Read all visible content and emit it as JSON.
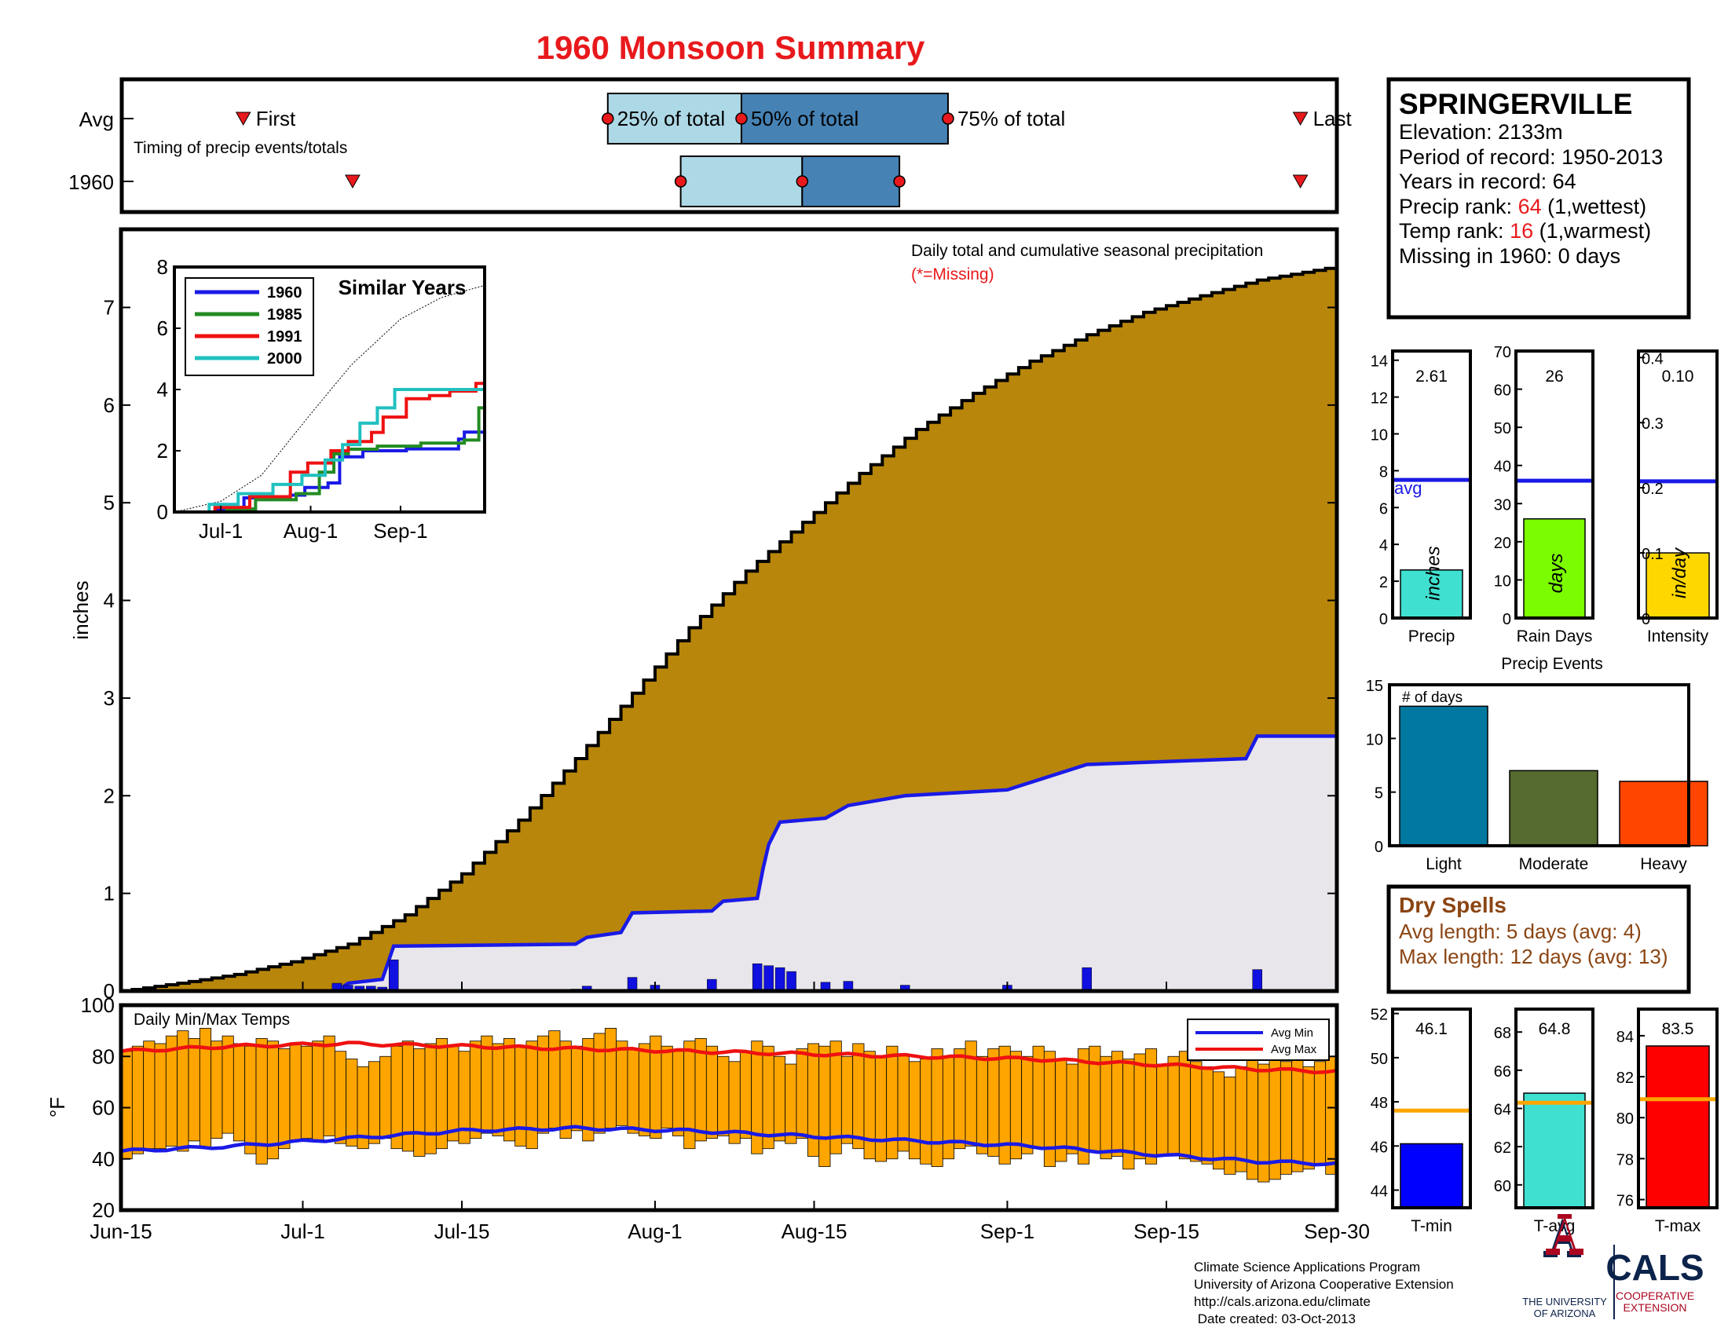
{
  "title": "1960 Monsoon Summary",
  "colors": {
    "title": "#e8191c",
    "seasonal_fill": "#b8860b",
    "year_fill": "#e8e6ea",
    "year_line": "#1a1ae6",
    "q1_box": "#add8e6",
    "q2_box": "#4682b4",
    "marker_red": "#e8191c",
    "temp_bar": "#ffa500",
    "avg_max_line": "#ee1111",
    "avg_min_line": "#1a1ae6",
    "precip_bar": "#40e0d0",
    "raindays_bar": "#7cfc00",
    "intensity_bar": "#ffd700",
    "light_bar": "#00789f",
    "moderate_bar": "#556b2f",
    "heavy_bar": "#ff4500",
    "dry_spells_text": "#8b4513",
    "tmin_bar": "#0000ff",
    "tavg_bar": "#40e0d0",
    "tmax_bar": "#ff0000",
    "avg_line_orange": "#ffa500",
    "ua_red": "#ab0520",
    "ua_blue": "#0c234b"
  },
  "timing": {
    "row_avg_label": "Avg",
    "row_year_label": "1960",
    "subtitle": "Timing of precip events/totals",
    "first_label": "First",
    "last_label": "Last",
    "q25_label": "25% of total",
    "q50_label": "50% of total",
    "q75_label": "75% of total",
    "avg": {
      "first": 10,
      "q25": 40,
      "q50": 51,
      "q75": 68,
      "last": 97
    },
    "year": {
      "first": 19,
      "q25": 46,
      "q50": 56,
      "q75": 64,
      "last": 97
    }
  },
  "info_box": {
    "station": "SPRINGERVILLE",
    "elevation": "Elevation: 2133m",
    "period": "Period of record: 1950-2013",
    "years": "Years in record: 64",
    "precip_rank_prefix": "Precip rank: ",
    "precip_rank_value": "64",
    "precip_rank_suffix": " (1,wettest)",
    "temp_rank_prefix": "Temp rank: ",
    "temp_rank_value": "16",
    "temp_rank_suffix": " (1,warmest)",
    "missing": "Missing in 1960: 0 days"
  },
  "chart_data": [
    {
      "id": "precip_main",
      "type": "area",
      "ylabel": "inches",
      "ylim": [
        0,
        7.8
      ],
      "yticks": [
        0,
        1,
        2,
        3,
        4,
        5,
        6,
        7
      ],
      "x_tick_labels": [
        "Jun-15",
        "Jul-1",
        "Jul-15",
        "Aug-1",
        "Aug-15",
        "Sep-1",
        "Sep-15",
        "Sep-30"
      ],
      "x_tick_days": [
        0,
        16,
        30,
        47,
        61,
        78,
        92,
        107
      ],
      "annotation": "Daily total and cumulative seasonal precipitation",
      "annotation_missing": "(*=Missing)",
      "series": [
        {
          "name": "Average cumulative",
          "x": [
            0,
            5,
            10,
            15,
            20,
            25,
            30,
            35,
            40,
            45,
            50,
            55,
            60,
            65,
            70,
            75,
            80,
            85,
            90,
            95,
            100,
            107
          ],
          "values": [
            0,
            0.08,
            0.17,
            0.3,
            0.48,
            0.78,
            1.2,
            1.75,
            2.38,
            3.05,
            3.72,
            4.3,
            4.8,
            5.3,
            5.75,
            6.12,
            6.45,
            6.72,
            6.95,
            7.12,
            7.28,
            7.42
          ]
        },
        {
          "name": "1960 cumulative",
          "x": [
            0,
            19,
            20,
            23,
            24,
            40,
            41,
            44,
            45,
            52,
            53,
            56,
            56.5,
            57,
            58,
            62,
            64,
            69,
            78,
            85,
            99,
            100,
            107
          ],
          "values": [
            0,
            0,
            0.08,
            0.12,
            0.46,
            0.48,
            0.55,
            0.6,
            0.8,
            0.82,
            0.92,
            0.95,
            1.25,
            1.5,
            1.73,
            1.77,
            1.9,
            2.0,
            2.06,
            2.32,
            2.38,
            2.61,
            2.61
          ]
        },
        {
          "name": "1960 daily",
          "x": [
            19,
            20,
            21,
            22,
            23,
            24,
            40,
            41,
            45,
            47,
            52,
            56,
            57,
            58,
            59,
            62,
            64,
            69,
            78,
            85,
            100
          ],
          "values": [
            0.08,
            0.06,
            0.05,
            0.05,
            0.04,
            0.32,
            0.02,
            0.05,
            0.14,
            0.06,
            0.12,
            0.28,
            0.26,
            0.24,
            0.2,
            0.09,
            0.1,
            0.06,
            0.06,
            0.24,
            0.22
          ]
        }
      ]
    },
    {
      "id": "similar_years",
      "type": "line",
      "title": "Similar Years",
      "ylim": [
        0,
        8
      ],
      "yticks": [
        0,
        2,
        4,
        6,
        8
      ],
      "x_tick_labels": [
        "Jul-1",
        "Aug-1",
        "Sep-1"
      ],
      "x_tick_days": [
        16,
        47,
        78
      ],
      "series": [
        {
          "name": "Average",
          "x": [
            0,
            16,
            30,
            47,
            61,
            78,
            92,
            107
          ],
          "values": [
            0,
            0.35,
            1.2,
            3.2,
            4.8,
            6.3,
            7.0,
            7.4
          ]
        },
        {
          "name": "1960",
          "x": [
            0,
            15,
            24,
            40,
            45,
            53,
            57,
            65,
            80,
            98,
            100,
            107
          ],
          "values": [
            0,
            0.08,
            0.46,
            0.55,
            0.8,
            0.95,
            1.8,
            2.0,
            2.06,
            2.38,
            2.61,
            2.61
          ]
        },
        {
          "name": "1985",
          "x": [
            0,
            18,
            28,
            42,
            50,
            55,
            60,
            70,
            85,
            100,
            105,
            107
          ],
          "values": [
            0,
            0.1,
            0.4,
            0.6,
            1.3,
            1.9,
            2.05,
            2.15,
            2.25,
            2.35,
            3.4,
            3.6
          ]
        },
        {
          "name": "1991",
          "x": [
            0,
            14,
            26,
            40,
            46,
            54,
            60,
            68,
            72,
            80,
            88,
            95,
            104,
            107
          ],
          "values": [
            0,
            0.15,
            0.5,
            1.3,
            1.6,
            2.0,
            2.3,
            2.6,
            3.1,
            3.7,
            3.8,
            3.95,
            4.2,
            4.4
          ]
        },
        {
          "name": "2000",
          "x": [
            0,
            12,
            22,
            34,
            44,
            52,
            58,
            64,
            70,
            76,
            107
          ],
          "values": [
            0,
            0.25,
            0.6,
            0.9,
            1.2,
            1.7,
            2.2,
            2.9,
            3.4,
            4.0,
            4.1
          ]
        }
      ]
    },
    {
      "id": "temps",
      "type": "bar",
      "title": "Daily Min/Max Temps",
      "ylabel": "°F",
      "ylim": [
        20,
        100
      ],
      "yticks": [
        20,
        40,
        60,
        80,
        100
      ],
      "x_tick_labels": [
        "Jun-15",
        "Jul-1",
        "Jul-15",
        "Aug-1",
        "Aug-15",
        "Sep-1",
        "Sep-15",
        "Sep-30"
      ],
      "x_tick_days": [
        0,
        16,
        30,
        47,
        61,
        78,
        92,
        107
      ],
      "legend": [
        "Avg Min",
        "Avg Max"
      ],
      "legend_position": "top-right",
      "series": [
        {
          "name": "Avg Min",
          "x": [
            0,
            10,
            20,
            30,
            40,
            50,
            60,
            70,
            80,
            90,
            100,
            107
          ],
          "values": [
            43,
            45,
            48,
            51,
            52,
            51,
            49,
            47,
            45,
            42,
            39,
            38
          ]
        },
        {
          "name": "Avg Max",
          "x": [
            0,
            10,
            20,
            30,
            40,
            50,
            60,
            70,
            80,
            90,
            100,
            107
          ],
          "values": [
            82,
            84,
            85,
            84,
            83,
            82,
            81,
            80,
            79,
            77,
            75,
            74
          ]
        },
        {
          "name": "Daily max",
          "values": [
            82,
            84,
            86,
            85,
            88,
            90,
            87,
            91,
            86,
            88,
            85,
            84,
            87,
            86,
            83,
            85,
            84,
            86,
            88,
            82,
            79,
            76,
            78,
            80,
            84,
            86,
            83,
            85,
            87,
            84,
            82,
            86,
            88,
            85,
            87,
            84,
            86,
            88,
            90,
            86,
            84,
            87,
            89,
            91,
            86,
            83,
            85,
            88,
            84,
            82,
            86,
            87,
            84,
            80,
            78,
            82,
            86,
            84,
            80,
            77,
            83,
            85,
            84,
            86,
            80,
            85,
            82,
            80,
            84,
            81,
            78,
            79,
            83,
            80,
            83,
            86,
            80,
            83,
            84,
            82,
            80,
            84,
            82,
            79,
            77,
            83,
            84,
            80,
            82,
            79,
            81,
            83,
            77,
            80,
            82,
            78,
            76,
            74,
            72,
            76,
            79,
            77,
            80,
            78,
            82,
            76,
            78,
            80
          ]
        },
        {
          "name": "Daily min",
          "values": [
            40,
            42,
            44,
            44,
            45,
            43,
            47,
            44,
            48,
            50,
            47,
            42,
            38,
            40,
            44,
            47,
            48,
            47,
            49,
            46,
            45,
            44,
            46,
            48,
            44,
            43,
            41,
            42,
            44,
            47,
            46,
            48,
            50,
            49,
            47,
            45,
            44,
            50,
            52,
            48,
            51,
            47,
            50,
            52,
            53,
            50,
            49,
            48,
            52,
            49,
            44,
            47,
            48,
            49,
            46,
            48,
            42,
            44,
            47,
            46,
            48,
            41,
            37,
            42,
            46,
            44,
            40,
            39,
            40,
            43,
            40,
            38,
            37,
            40,
            44,
            45,
            42,
            41,
            38,
            40,
            42,
            44,
            37,
            39,
            42,
            38,
            43,
            40,
            41,
            36,
            40,
            38,
            41,
            42,
            40,
            39,
            38,
            36,
            34,
            35,
            32,
            31,
            32,
            34,
            35,
            36,
            38,
            34
          ]
        }
      ]
    },
    {
      "id": "precip_summary",
      "type": "bar",
      "panels": [
        {
          "label": "Precip",
          "unit": "inches",
          "value": 2.61,
          "value_text": "2.61",
          "avg": 7.5,
          "ylim": [
            0,
            14.5
          ],
          "yticks": [
            0,
            2,
            4,
            6,
            8,
            10,
            12,
            14
          ],
          "avg_text": "avg"
        },
        {
          "label": "Rain Days",
          "unit": "days",
          "value": 26,
          "value_text": "26",
          "avg": 36,
          "ylim": [
            0,
            70
          ],
          "yticks": [
            0,
            10,
            20,
            30,
            40,
            50,
            60,
            70
          ]
        },
        {
          "label": "Intensity",
          "unit": "in/day",
          "value": 0.1,
          "value_text": "0.10",
          "avg": 0.21,
          "ylim": [
            0,
            0.41
          ],
          "yticks": [
            0,
            0.1,
            0.2,
            0.3,
            0.4
          ],
          "ytick_labels": [
            "0",
            "0.1",
            "0.2",
            "0.3",
            "0.4"
          ]
        }
      ]
    },
    {
      "id": "precip_events",
      "type": "bar",
      "title": "Precip Events",
      "ylabel": "# of days",
      "ylim": [
        0,
        15
      ],
      "yticks": [
        0,
        5,
        10,
        15
      ],
      "categories": [
        "Light",
        "Moderate",
        "Heavy"
      ],
      "values": [
        13,
        7,
        6
      ]
    },
    {
      "id": "temp_summary",
      "type": "bar",
      "panels": [
        {
          "label": "T-min",
          "value": 46.1,
          "value_text": "46.1",
          "avg": 47.6,
          "ylim": [
            43.2,
            52.2
          ],
          "yticks": [
            44,
            46,
            48,
            50,
            52
          ]
        },
        {
          "label": "T-avg",
          "value": 64.8,
          "value_text": "64.8",
          "avg": 64.3,
          "ylim": [
            58.8,
            69.2
          ],
          "yticks": [
            60,
            62,
            64,
            66,
            68
          ]
        },
        {
          "label": "T-max",
          "value": 83.5,
          "value_text": "83.5",
          "avg": 80.9,
          "ylim": [
            75.6,
            85.3
          ],
          "yticks": [
            76,
            78,
            80,
            82,
            84
          ]
        }
      ]
    }
  ],
  "dry_spells": {
    "title": "Dry Spells",
    "avg_length": "Avg length: 5 days (avg: 4)",
    "max_length": "Max length: 12 days (avg: 13)"
  },
  "footer": {
    "line1": "Climate Science Applications Program",
    "line2": "University of Arizona Cooperative Extension",
    "line3": "http://cals.arizona.edu/climate",
    "line4": " Date created: 03-Oct-2013",
    "ua_line1": "THE UNIVERSITY",
    "ua_line2": "OF ARIZONA",
    "cals": "CALS",
    "cals_sub1": "COOPERATIVE",
    "cals_sub2": "EXTENSION"
  }
}
